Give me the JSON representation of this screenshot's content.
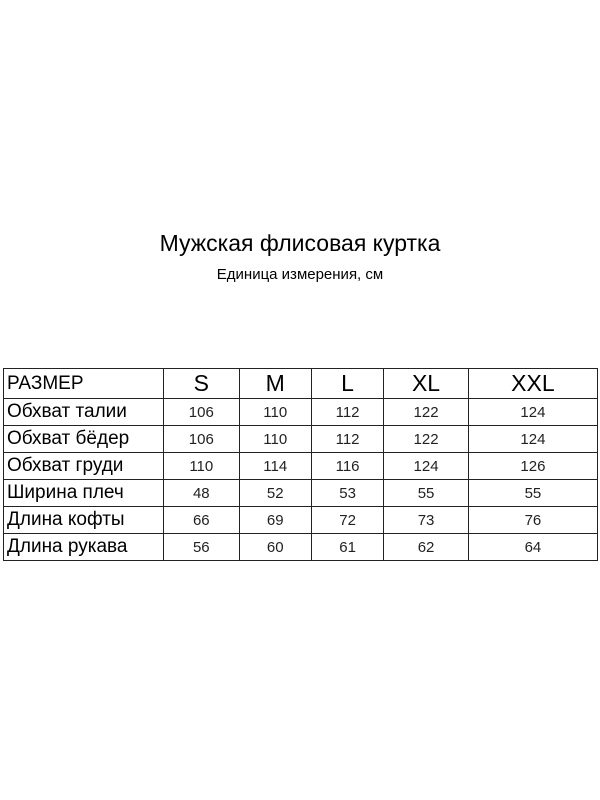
{
  "title": "Мужская флисовая куртка",
  "subtitle": "Единица измерения, см",
  "table": {
    "header": [
      "РАЗМЕР",
      "S",
      "M",
      "L",
      "XL",
      "XXL"
    ],
    "rows": [
      [
        "Обхват талии",
        "106",
        "110",
        "112",
        "122",
        "124"
      ],
      [
        "Обхват бёдер",
        "106",
        "110",
        "112",
        "122",
        "124"
      ],
      [
        "Обхват груди",
        "110",
        "114",
        "116",
        "124",
        "126"
      ],
      [
        "Ширина плеч",
        "48",
        "52",
        "53",
        "55",
        "55"
      ],
      [
        "Длина кофты",
        "66",
        "69",
        "72",
        "73",
        "76"
      ],
      [
        "Длина рукава",
        "56",
        "60",
        "61",
        "62",
        "64"
      ]
    ]
  }
}
